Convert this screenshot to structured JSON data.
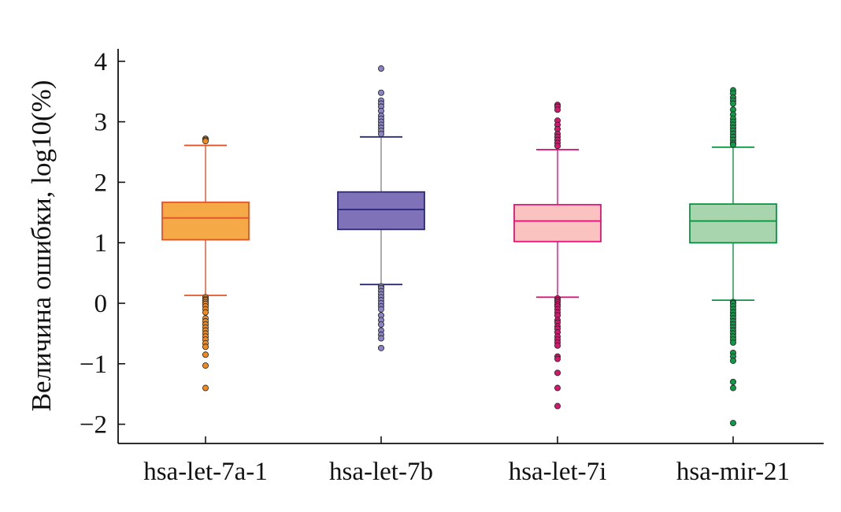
{
  "chart_data": {
    "type": "boxplot",
    "title": "",
    "xlabel": "",
    "ylabel": "Величина ошибки, log10(%)",
    "ylim": [
      -2.3,
      4.2
    ],
    "yticks": [
      -2,
      -1,
      0,
      1,
      2,
      3,
      4
    ],
    "ytick_labels": [
      "−2",
      "−1",
      "0",
      "1",
      "2",
      "3",
      "4"
    ],
    "categories": [
      "hsa-let-7a-1",
      "hsa-let-7b",
      "hsa-let-7i",
      "hsa-mir-21"
    ],
    "series": [
      {
        "name": "hsa-let-7a-1",
        "whisker_low": 0.13,
        "q1": 1.05,
        "median": 1.41,
        "q3": 1.67,
        "whisker_high": 2.61,
        "fill": "#f5a947",
        "stroke": "#e0542a",
        "whisker_color": "#e0542a",
        "flier_color": "#f08a1c",
        "outliers": [
          2.72,
          2.7,
          2.68,
          0.1,
          0.07,
          0.05,
          0.02,
          -0.01,
          -0.05,
          -0.1,
          -0.15,
          -0.25,
          -0.3,
          -0.35,
          -0.4,
          -0.45,
          -0.5,
          -0.55,
          -0.6,
          -0.66,
          -0.72,
          -0.85,
          -1.03,
          -1.4
        ]
      },
      {
        "name": "hsa-let-7b",
        "whisker_low": 0.31,
        "q1": 1.22,
        "median": 1.55,
        "q3": 1.84,
        "whisker_high": 2.75,
        "fill": "#8072b8",
        "stroke": "#2a2a7a",
        "whisker_color": "#888888",
        "flier_color": "#8a84c4",
        "outliers": [
          3.88,
          3.48,
          3.35,
          3.3,
          3.25,
          3.18,
          3.1,
          3.05,
          3.0,
          2.95,
          2.9,
          2.85,
          2.8,
          0.28,
          0.25,
          0.2,
          0.15,
          0.1,
          0.05,
          0.0,
          -0.05,
          -0.1,
          -0.2,
          -0.28,
          -0.35,
          -0.45,
          -0.52,
          -0.58,
          -0.74
        ]
      },
      {
        "name": "hsa-let-7i",
        "whisker_low": 0.1,
        "q1": 1.02,
        "median": 1.36,
        "q3": 1.63,
        "whisker_high": 2.54,
        "fill": "#fbc3bf",
        "stroke": "#e0147a",
        "whisker_color": "#e0147a",
        "flier_color": "#d81570",
        "outliers": [
          3.28,
          3.25,
          3.2,
          3.02,
          2.95,
          2.88,
          2.8,
          2.75,
          2.7,
          2.65,
          2.6,
          0.08,
          0.05,
          0.02,
          -0.02,
          -0.05,
          -0.1,
          -0.15,
          -0.2,
          -0.28,
          -0.32,
          -0.38,
          -0.42,
          -0.48,
          -0.55,
          -0.6,
          -0.65,
          -0.7,
          -0.88,
          -0.92,
          -1.15,
          -1.4,
          -1.7
        ]
      },
      {
        "name": "hsa-mir-21",
        "whisker_low": 0.05,
        "q1": 1.0,
        "median": 1.36,
        "q3": 1.64,
        "whisker_high": 2.58,
        "fill": "#a8d5ad",
        "stroke": "#0d9443",
        "whisker_color": "#0d9443",
        "flier_color": "#0f9a48",
        "outliers": [
          3.52,
          3.47,
          3.4,
          3.35,
          3.3,
          3.2,
          3.12,
          3.05,
          3.0,
          2.95,
          2.9,
          2.85,
          2.8,
          2.75,
          2.7,
          2.65,
          2.62,
          0.02,
          0.0,
          -0.05,
          -0.1,
          -0.15,
          -0.2,
          -0.25,
          -0.3,
          -0.35,
          -0.4,
          -0.45,
          -0.5,
          -0.55,
          -0.6,
          -0.65,
          -0.82,
          -0.88,
          -0.95,
          -1.3,
          -1.4,
          -1.98
        ]
      }
    ]
  }
}
